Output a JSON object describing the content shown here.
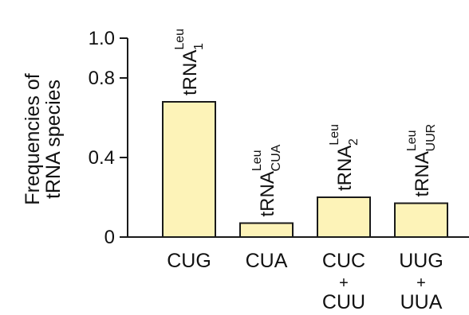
{
  "chart_data": {
    "type": "bar",
    "ylabel_lines": [
      "Frequencies of",
      "tRNA species"
    ],
    "ylim": [
      0,
      1.0
    ],
    "yticks": [
      {
        "value": 0,
        "label": "0"
      },
      {
        "value": 0.4,
        "label": "0.4"
      },
      {
        "value": 0.8,
        "label": "0.8"
      },
      {
        "value": 1.0,
        "label": "1.0"
      }
    ],
    "categories": [
      {
        "lines": [
          "CUG"
        ]
      },
      {
        "lines": [
          "CUA"
        ]
      },
      {
        "lines": [
          "CUC",
          "+",
          "CUU"
        ]
      },
      {
        "lines": [
          "UUG",
          "+",
          "UUA"
        ]
      }
    ],
    "values": [
      0.68,
      0.07,
      0.2,
      0.17
    ],
    "bar_labels": [
      {
        "base": "tRNA",
        "sup": "Leu",
        "sub": "1"
      },
      {
        "base": "tRNA",
        "sup": "Leu",
        "sub": "CUA"
      },
      {
        "base": "tRNA",
        "sup": "Leu",
        "sub": "2"
      },
      {
        "base": "tRNA",
        "sup": "Leu",
        "sub": "UUR"
      }
    ],
    "colors": {
      "bar_fill": "#fdf3b8",
      "bar_stroke": "#1a1a1a",
      "axis": "#1a1a1a"
    }
  }
}
